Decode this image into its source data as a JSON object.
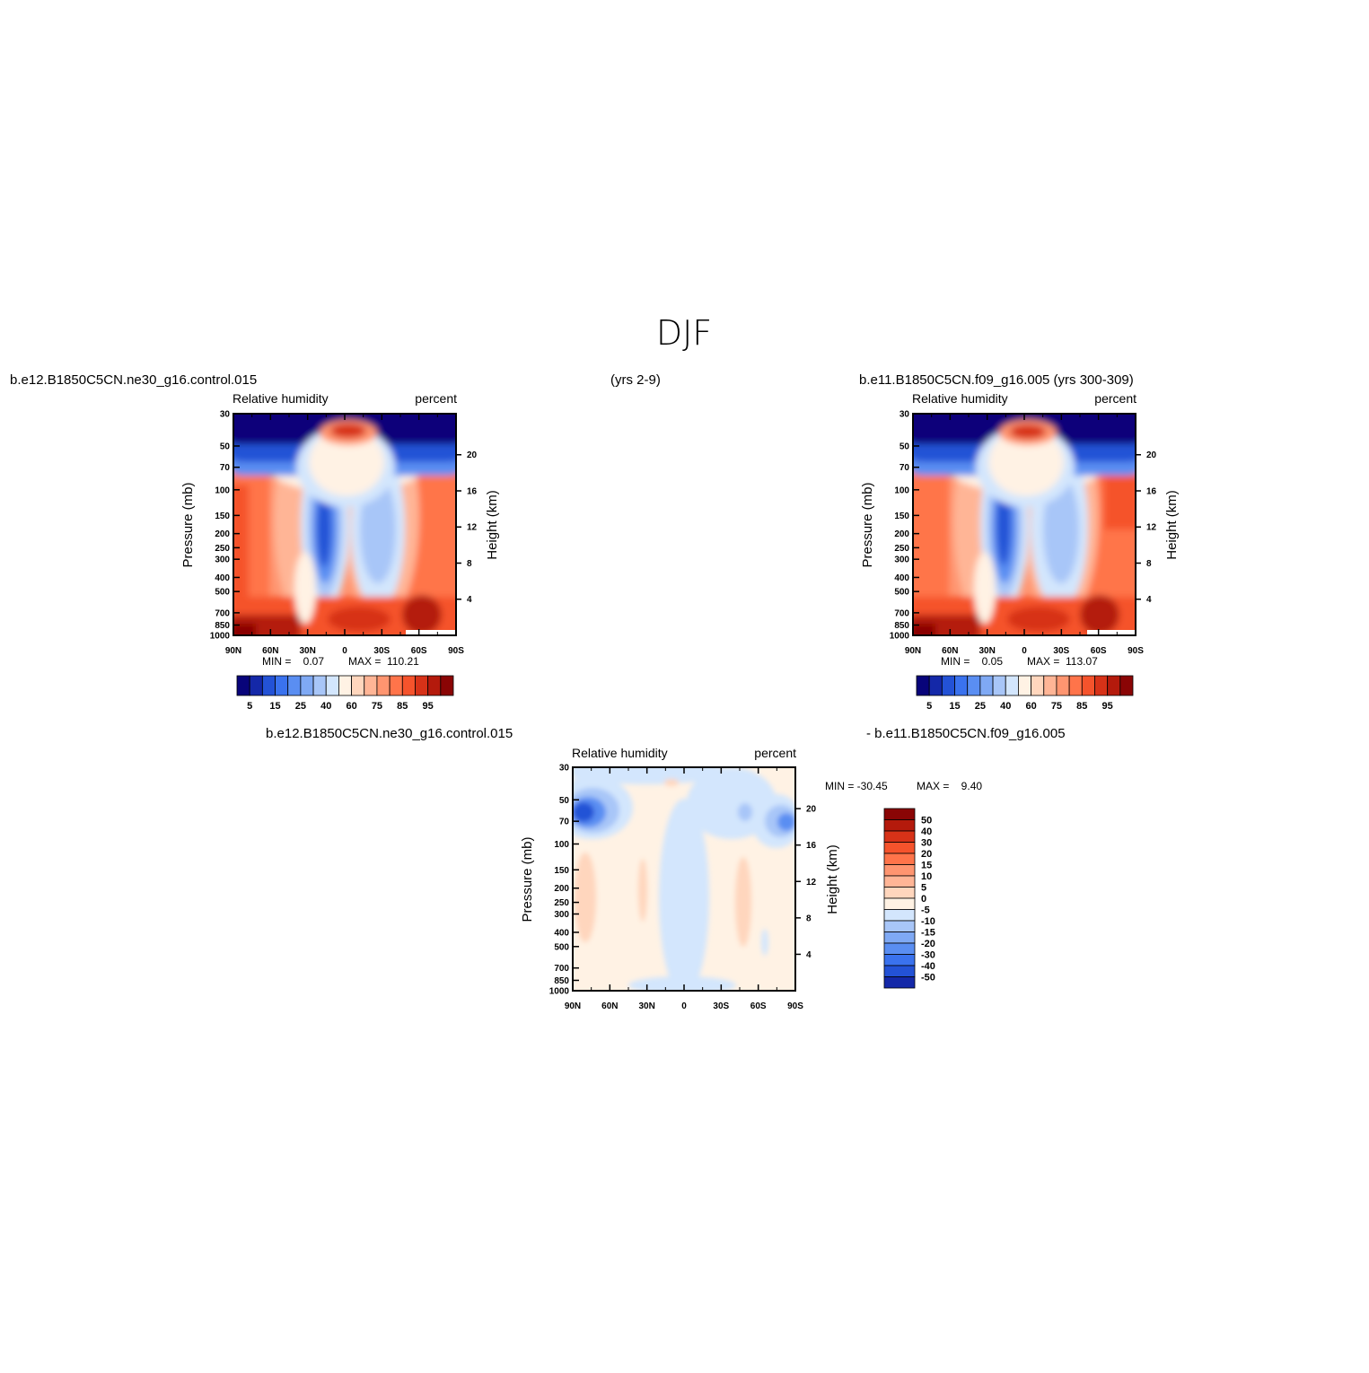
{
  "page": {
    "title": "DJF",
    "case1_label": "b.e12.B1850C5CN.ne30_g16.control.015",
    "case1_years": "(yrs 2-9)",
    "case2_label": "b.e11.B1850C5CN.f09_g16.005 (yrs 300-309)",
    "diff_label_left": "b.e12.B1850C5CN.ne30_g16.control.015",
    "diff_label_right": "- b.e11.B1850C5CN.f09_g16.005"
  },
  "chart_data": [
    {
      "id": "panel1",
      "type": "heatmap",
      "left_label": "Relative humidity",
      "right_label": "percent",
      "ylabel": "Pressure (mb)",
      "ylabel_right": "Height (km)",
      "x_ticks": [
        "90N",
        "60N",
        "30N",
        "0",
        "30S",
        "60S",
        "90S"
      ],
      "y_ticks": [
        "30",
        "50",
        "70",
        "100",
        "150",
        "200",
        "250",
        "300",
        "400",
        "500",
        "700",
        "850",
        "1000"
      ],
      "y_ticks_right": [
        "20",
        "16",
        "12",
        "8",
        "4"
      ],
      "min_text": "MIN =    0.07",
      "max_text": "MAX =  110.21",
      "colorbar_labels": [
        "5",
        "15",
        "25",
        "40",
        "60",
        "75",
        "85",
        "95"
      ],
      "colors": [
        "#08047a",
        "#1428a8",
        "#2352d6",
        "#3a72ee",
        "#5a8ef2",
        "#7fa9f4",
        "#a8c6f8",
        "#d3e6fd",
        "#fff2e4",
        "#ffd6bd",
        "#ffb596",
        "#ff9570",
        "#ff744a",
        "#f5532c",
        "#d73218",
        "#b41a0c",
        "#8a0505"
      ]
    },
    {
      "id": "panel2",
      "type": "heatmap",
      "left_label": "Relative humidity",
      "right_label": "percent",
      "ylabel": "Pressure (mb)",
      "ylabel_right": "Height (km)",
      "x_ticks": [
        "90N",
        "60N",
        "30N",
        "0",
        "30S",
        "60S",
        "90S"
      ],
      "y_ticks": [
        "30",
        "50",
        "70",
        "100",
        "150",
        "200",
        "250",
        "300",
        "400",
        "500",
        "700",
        "850",
        "1000"
      ],
      "y_ticks_right": [
        "20",
        "16",
        "12",
        "8",
        "4"
      ],
      "min_text": "MIN =    0.05",
      "max_text": "MAX =  113.07",
      "colorbar_labels": [
        "5",
        "15",
        "25",
        "40",
        "60",
        "75",
        "85",
        "95"
      ],
      "colors": [
        "#08047a",
        "#1428a8",
        "#2352d6",
        "#3a72ee",
        "#5a8ef2",
        "#7fa9f4",
        "#a8c6f8",
        "#d3e6fd",
        "#fff2e4",
        "#ffd6bd",
        "#ffb596",
        "#ff9570",
        "#ff744a",
        "#f5532c",
        "#d73218",
        "#b41a0c",
        "#8a0505"
      ]
    },
    {
      "id": "panel3",
      "type": "heatmap",
      "left_label": "Relative humidity",
      "right_label": "percent",
      "ylabel": "Pressure (mb)",
      "ylabel_right": "Height (km)",
      "x_ticks": [
        "90N",
        "60N",
        "30N",
        "0",
        "30S",
        "60S",
        "90S"
      ],
      "y_ticks": [
        "30",
        "50",
        "70",
        "100",
        "150",
        "200",
        "250",
        "300",
        "400",
        "500",
        "700",
        "850",
        "1000"
      ],
      "y_ticks_right": [
        "20",
        "16",
        "12",
        "8",
        "4"
      ],
      "min_text": "MIN = -30.45",
      "max_text": "MAX =    9.40",
      "colorbar_labels": [
        "50",
        "40",
        "30",
        "20",
        "15",
        "10",
        "5",
        "0",
        "-5",
        "-10",
        "-15",
        "-20",
        "-30",
        "-40",
        "-50"
      ],
      "colors": [
        "#8a0505",
        "#b41a0c",
        "#d73218",
        "#f5532c",
        "#ff744a",
        "#ff9570",
        "#ffb596",
        "#ffd6bd",
        "#fff2e4",
        "#d3e6fd",
        "#a8c6f8",
        "#7fa9f4",
        "#5a8ef2",
        "#3a72ee",
        "#2352d6",
        "#1428a8"
      ]
    }
  ]
}
